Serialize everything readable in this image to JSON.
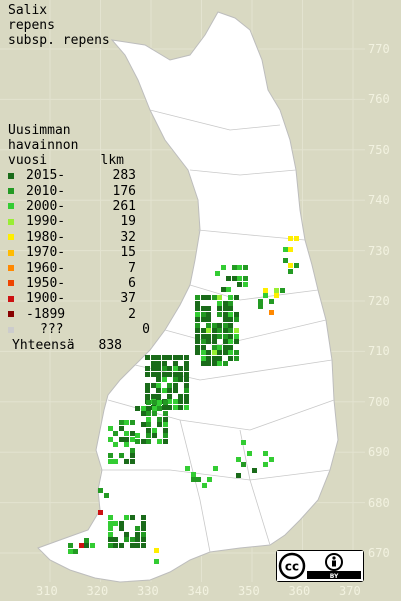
{
  "title": [
    "Salix",
    "repens",
    "subsp. repens"
  ],
  "legend": {
    "header": [
      "Uusimman",
      "havainnon"
    ],
    "col_year": "vuosi",
    "col_count": "lkm",
    "rows": [
      {
        "label": "2015-",
        "count": "283",
        "color": "#1a6b1a"
      },
      {
        "label": "2010-",
        "count": "176",
        "color": "#239a23"
      },
      {
        "label": "2000-",
        "count": "261",
        "color": "#33cc33"
      },
      {
        "label": "1990-",
        "count": "19",
        "color": "#99ee33"
      },
      {
        "label": "1980-",
        "count": "32",
        "color": "#ffee00"
      },
      {
        "label": "1970-",
        "count": "15",
        "color": "#ffbb00"
      },
      {
        "label": "1960-",
        "count": "7",
        "color": "#ff8800"
      },
      {
        "label": "1950-",
        "count": "6",
        "color": "#ee4400"
      },
      {
        "label": "1900-",
        "count": "37",
        "color": "#cc1111"
      },
      {
        "label": "-1899",
        "count": "2",
        "color": "#880000"
      },
      {
        "label": "???",
        "count": "0",
        "color": "#cccccc"
      }
    ],
    "total_label": "Yhteensä",
    "total_count": "838"
  },
  "y_ticks": [
    "770",
    "760",
    "750",
    "740",
    "730",
    "720",
    "710",
    "700",
    "690",
    "680",
    "670"
  ],
  "x_ticks": [
    "310",
    "320",
    "330",
    "340",
    "350",
    "360",
    "370"
  ],
  "license": {
    "cc": "cc",
    "by": "BY"
  }
}
